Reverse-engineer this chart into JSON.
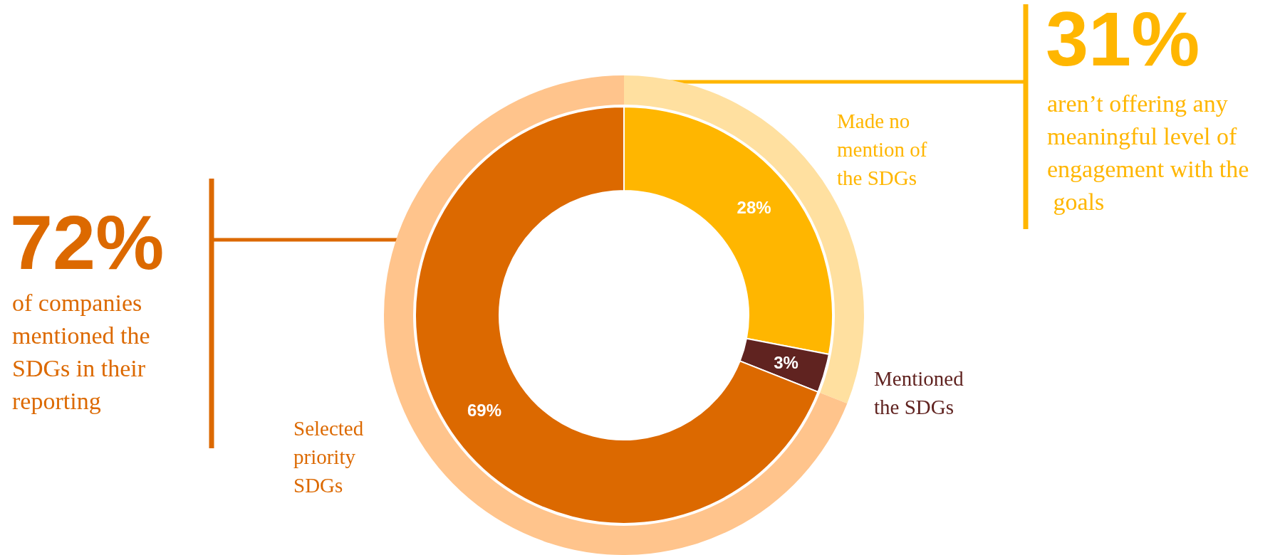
{
  "chart_data": {
    "type": "donut",
    "categories": [
      "Made no mention of the SDGs",
      "Mentioned the SDGs",
      "Selected priority SDGs"
    ],
    "series": [
      {
        "values": [
          28,
          3,
          69
        ],
        "colors": [
          "#ffb600",
          "#602320",
          "#dc6900"
        ],
        "value_labels": [
          "28%",
          "3%",
          "69%"
        ]
      },
      {
        "values": [
          31,
          null,
          69
        ],
        "colors": [
          "#ffe0a0",
          null,
          "#ffc48c"
        ]
      }
    ],
    "annotations": [
      "72%",
      "of companies mentioned the SDGs in their reporting",
      "31%",
      "aren’t offering any meaningful level of engagement with the goals"
    ],
    "legend": false
  }
}
